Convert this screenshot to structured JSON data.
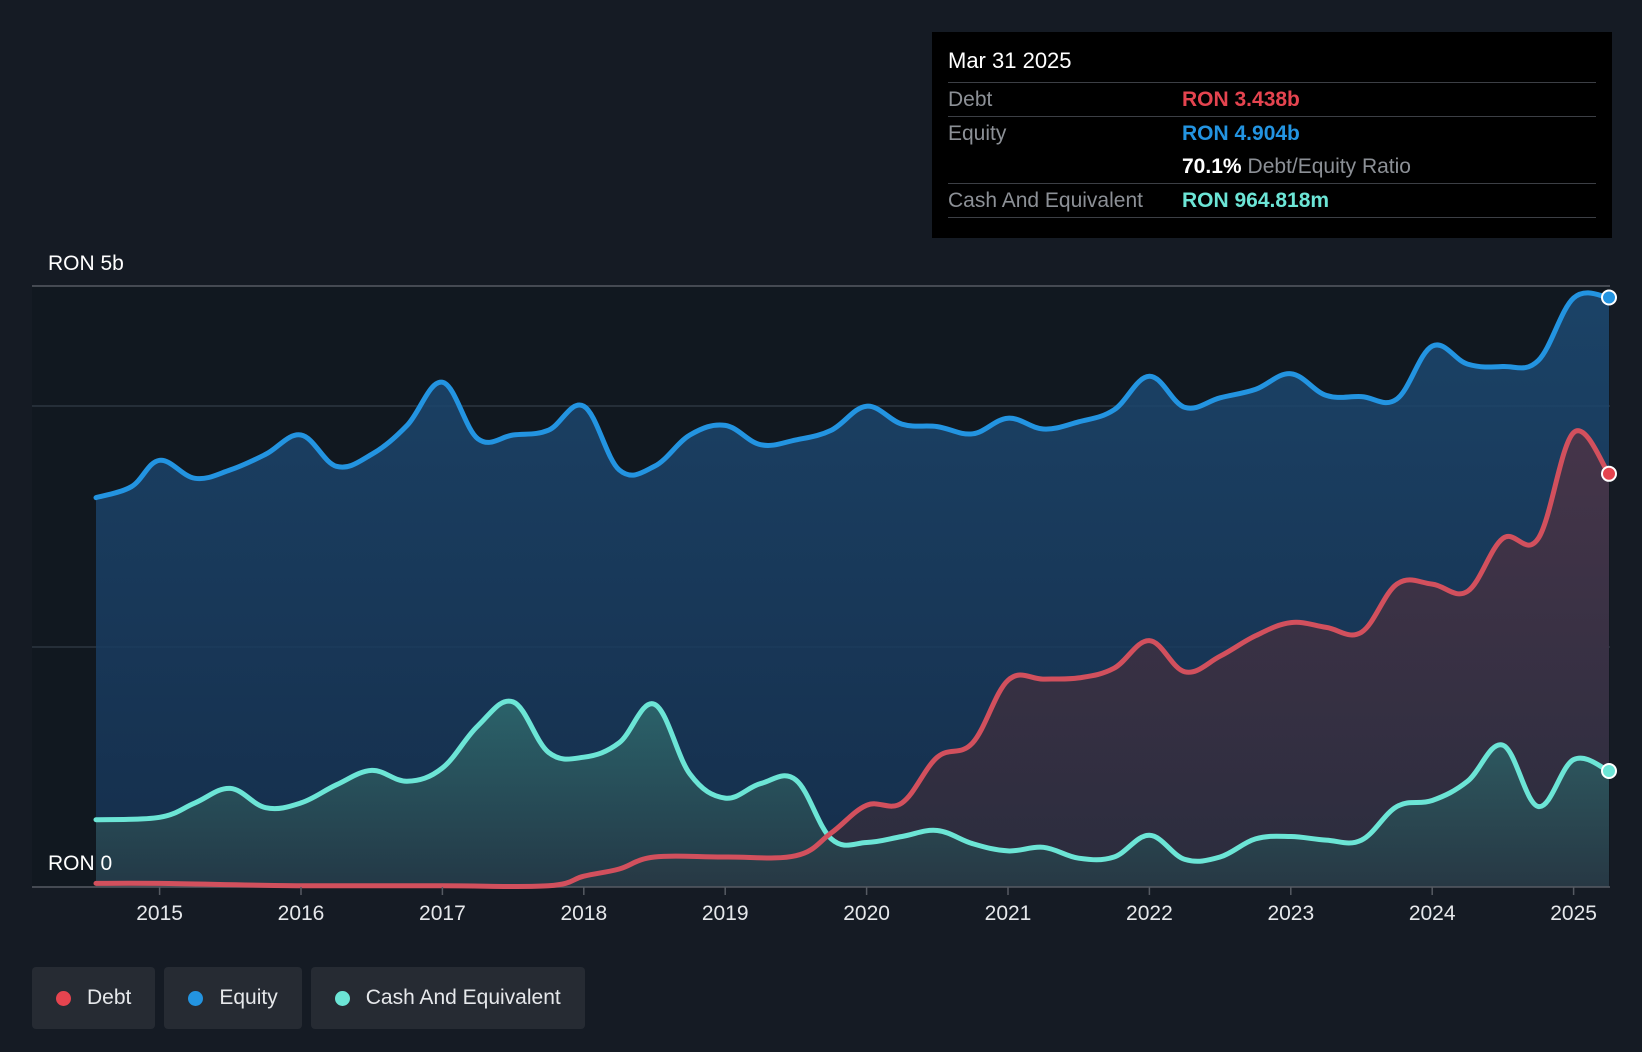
{
  "tooltip": {
    "date": "Mar 31 2025",
    "debt_label": "Debt",
    "debt_value": "RON 3.438b",
    "equity_label": "Equity",
    "equity_value": "RON 4.904b",
    "ratio_value": "70.1%",
    "ratio_label": "Debt/Equity Ratio",
    "cash_label": "Cash And Equivalent",
    "cash_value": "RON 964.818m"
  },
  "legend": {
    "debt": "Debt",
    "equity": "Equity",
    "cash": "Cash And Equivalent"
  },
  "colors": {
    "debt": "#e5444f",
    "equity": "#2394e1",
    "cash": "#6ce5d6"
  },
  "chart_data": {
    "type": "area",
    "title": "",
    "xlabel": "",
    "ylabel": "",
    "y_top_label": "RON 5b",
    "y_bottom_label": "RON 0",
    "ylim": [
      0,
      5
    ],
    "xlim": [
      2014.55,
      2025.25
    ],
    "x_ticks": [
      "2015",
      "2016",
      "2017",
      "2018",
      "2019",
      "2020",
      "2021",
      "2022",
      "2023",
      "2024",
      "2025"
    ],
    "units": "RON billions",
    "series": [
      {
        "name": "Equity",
        "key": "equity",
        "x": [
          2014.55,
          2014.8,
          2015.0,
          2015.25,
          2015.5,
          2015.75,
          2016.0,
          2016.25,
          2016.5,
          2016.75,
          2017.0,
          2017.25,
          2017.5,
          2017.75,
          2018.0,
          2018.25,
          2018.5,
          2018.75,
          2019.0,
          2019.25,
          2019.5,
          2019.75,
          2020.0,
          2020.25,
          2020.5,
          2020.75,
          2021.0,
          2021.25,
          2021.5,
          2021.75,
          2022.0,
          2022.25,
          2022.5,
          2022.75,
          2023.0,
          2023.25,
          2023.5,
          2023.75,
          2024.0,
          2024.25,
          2024.5,
          2024.75,
          2025.0,
          2025.25
        ],
        "values": [
          3.24,
          3.33,
          3.55,
          3.4,
          3.47,
          3.6,
          3.76,
          3.5,
          3.6,
          3.84,
          4.2,
          3.73,
          3.76,
          3.8,
          4.0,
          3.47,
          3.5,
          3.76,
          3.84,
          3.68,
          3.72,
          3.8,
          4.0,
          3.85,
          3.83,
          3.77,
          3.9,
          3.81,
          3.87,
          3.97,
          4.25,
          3.99,
          4.07,
          4.14,
          4.27,
          4.09,
          4.08,
          4.06,
          4.5,
          4.35,
          4.33,
          4.38,
          4.9,
          4.904
        ],
        "labels_note": "approximate"
      },
      {
        "name": "Debt",
        "key": "debt",
        "x": [
          2014.55,
          2015.0,
          2016.0,
          2017.0,
          2017.75,
          2018.0,
          2018.25,
          2018.5,
          2019.0,
          2019.5,
          2019.75,
          2020.0,
          2020.25,
          2020.5,
          2020.75,
          2021.0,
          2021.25,
          2021.5,
          2021.75,
          2022.0,
          2022.25,
          2022.5,
          2022.75,
          2023.0,
          2023.25,
          2023.5,
          2023.75,
          2024.0,
          2024.25,
          2024.5,
          2024.75,
          2025.0,
          2025.25
        ],
        "values": [
          0.03,
          0.03,
          0.01,
          0.01,
          0.01,
          0.09,
          0.15,
          0.25,
          0.25,
          0.26,
          0.45,
          0.68,
          0.7,
          1.08,
          1.2,
          1.72,
          1.73,
          1.74,
          1.82,
          2.05,
          1.79,
          1.92,
          2.09,
          2.2,
          2.16,
          2.12,
          2.52,
          2.52,
          2.46,
          2.9,
          2.9,
          3.78,
          3.438
        ]
      },
      {
        "name": "Cash And Equivalent",
        "key": "cash",
        "x": [
          2014.55,
          2015.0,
          2015.25,
          2015.5,
          2015.75,
          2016.0,
          2016.25,
          2016.5,
          2016.75,
          2017.0,
          2017.25,
          2017.5,
          2017.75,
          2018.0,
          2018.25,
          2018.5,
          2018.75,
          2019.0,
          2019.25,
          2019.5,
          2019.75,
          2020.0,
          2020.25,
          2020.5,
          2020.75,
          2021.0,
          2021.25,
          2021.5,
          2021.75,
          2022.0,
          2022.25,
          2022.5,
          2022.75,
          2023.0,
          2023.25,
          2023.5,
          2023.75,
          2024.0,
          2024.25,
          2024.5,
          2024.75,
          2025.0,
          2025.25
        ],
        "values": [
          0.56,
          0.58,
          0.7,
          0.82,
          0.66,
          0.7,
          0.85,
          0.97,
          0.88,
          0.99,
          1.34,
          1.54,
          1.12,
          1.08,
          1.2,
          1.52,
          0.94,
          0.74,
          0.86,
          0.89,
          0.4,
          0.37,
          0.42,
          0.47,
          0.36,
          0.3,
          0.33,
          0.24,
          0.25,
          0.43,
          0.23,
          0.25,
          0.4,
          0.42,
          0.39,
          0.39,
          0.67,
          0.72,
          0.88,
          1.18,
          0.67,
          1.06,
          0.965
        ]
      }
    ],
    "markers": [
      {
        "series": "equity",
        "x": 2025.25,
        "y": 4.904
      },
      {
        "series": "debt",
        "x": 2025.25,
        "y": 3.438
      },
      {
        "series": "cash",
        "x": 2025.25,
        "y": 0.965
      }
    ]
  }
}
